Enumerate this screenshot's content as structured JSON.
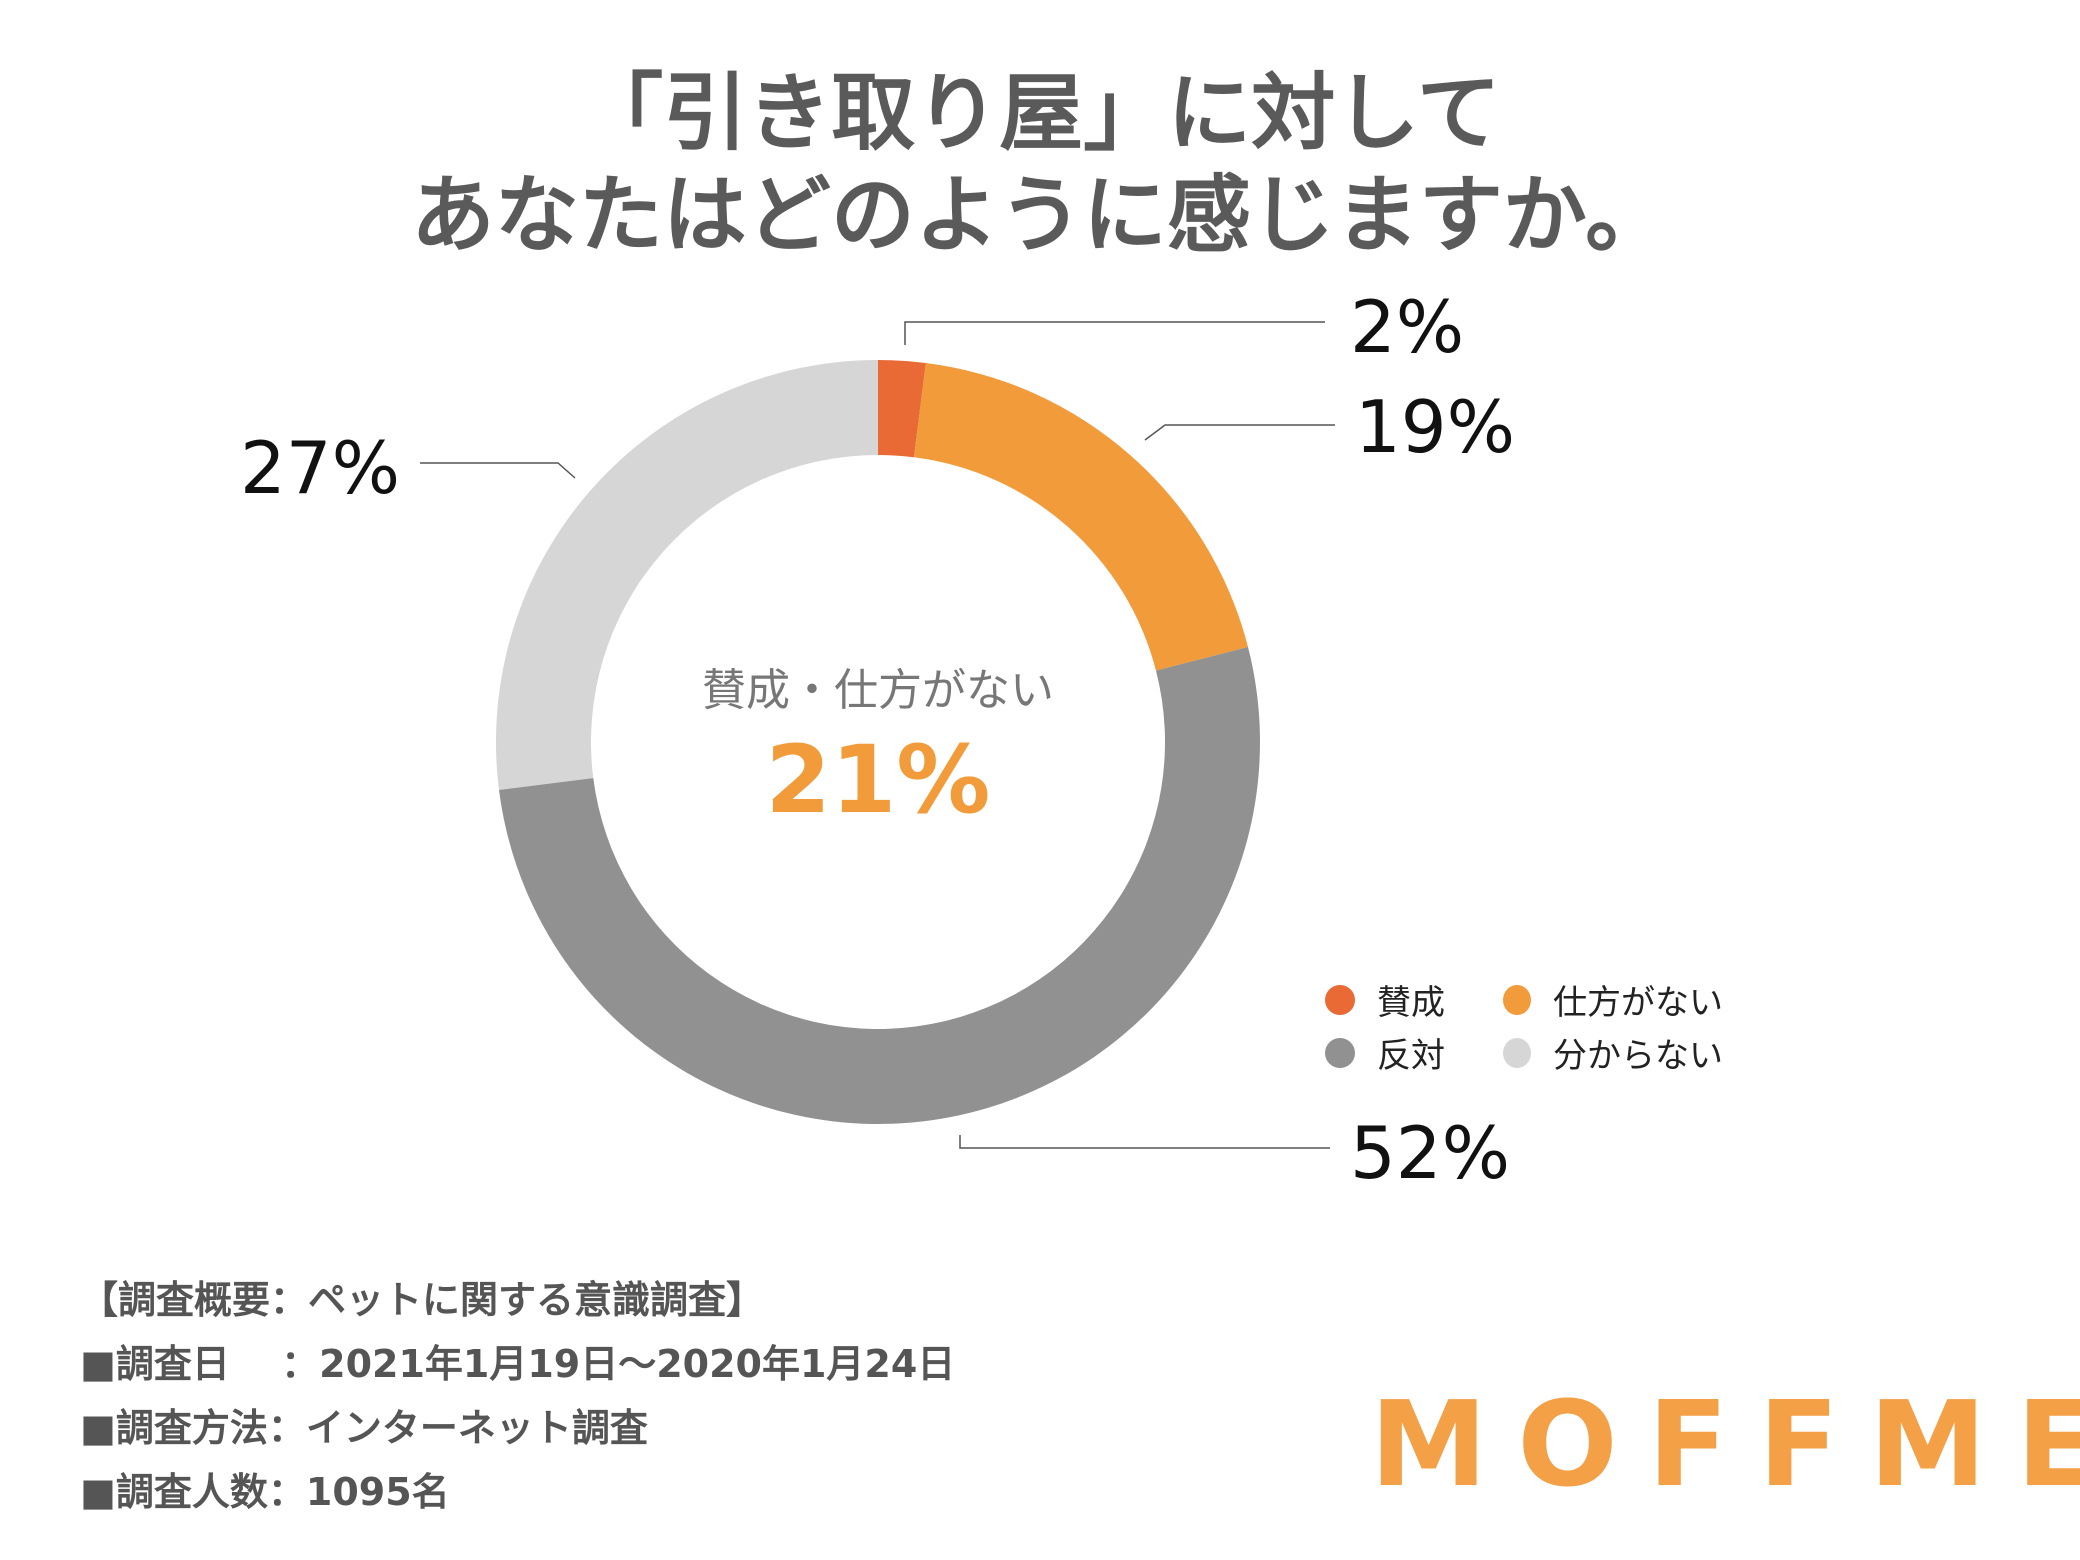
{
  "title": {
    "line1": "「引き取り屋」に対して",
    "line2": "あなたはどのように感じますか。"
  },
  "chart_data": {
    "type": "pie",
    "donut": true,
    "categories": [
      "賛成",
      "仕方がない",
      "反対",
      "分からない"
    ],
    "values": [
      2,
      19,
      52,
      27
    ],
    "labels": [
      "2%",
      "19%",
      "52%",
      "27%"
    ],
    "colors": [
      "#ea6a35",
      "#f19b3a",
      "#919191",
      "#d6d6d6"
    ],
    "center_label": "賛成・仕方がない",
    "center_value": "21%",
    "center_value_color": "#f19b3a",
    "legend": {
      "placement": "bottom-right",
      "items": [
        "賛成",
        "仕方がない",
        "反対",
        "分からない"
      ]
    }
  },
  "survey": {
    "heading": "【調査概要：ペットに関する意識調査】",
    "rows": [
      "■調査日　 ：2021年1月19日〜2020年1月24日",
      "■調査方法：インターネット調査",
      "■調査人数：1095名"
    ]
  },
  "logo": "MOFFME"
}
